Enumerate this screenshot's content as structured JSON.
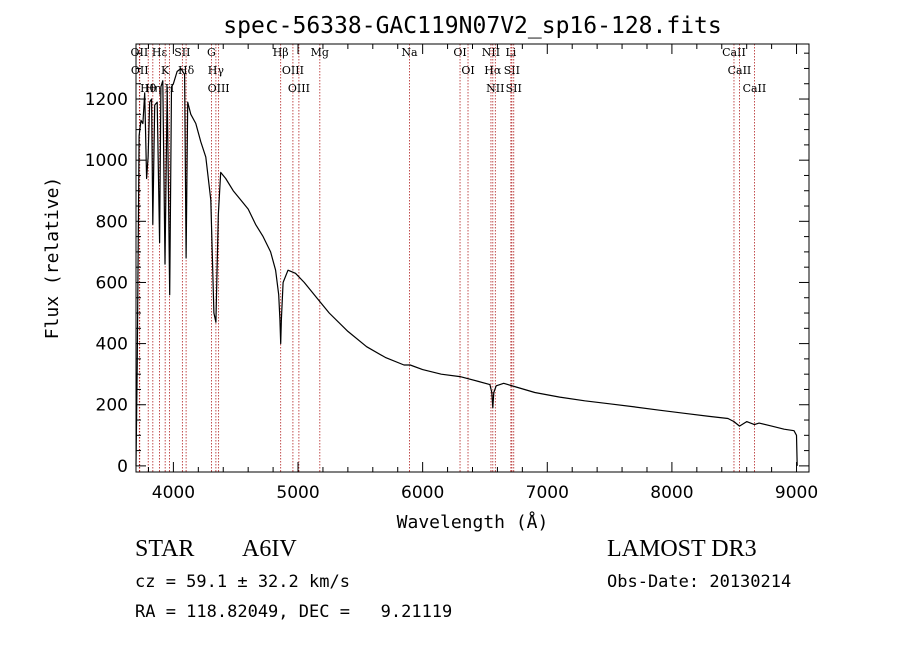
{
  "chart_data": {
    "type": "line",
    "title": "spec-56338-GAC119N07V2_sp16-128.fits",
    "xlabel": "Wavelength (Å)",
    "ylabel": "Flux (relative)",
    "xlim": [
      3700,
      9100
    ],
    "ylim": [
      -20,
      1380
    ],
    "xticks": [
      4000,
      5000,
      6000,
      7000,
      8000,
      9000
    ],
    "xtick_labels": [
      "4000",
      "5000",
      "6000",
      "7000",
      "8000",
      "9000"
    ],
    "yticks": [
      0,
      200,
      400,
      600,
      800,
      1000,
      1200
    ],
    "ytick_labels": [
      "0",
      "200",
      "400",
      "600",
      "800",
      "1000",
      "1200"
    ],
    "grid": false,
    "series": [
      {
        "name": "spectrum",
        "x": [
          3700,
          3710,
          3725,
          3740,
          3755,
          3770,
          3785,
          3797,
          3810,
          3825,
          3835,
          3850,
          3870,
          3889,
          3900,
          3915,
          3933,
          3950,
          3970,
          3985,
          4000,
          4030,
          4060,
          4090,
          4102,
          4115,
          4140,
          4180,
          4220,
          4260,
          4300,
          4325,
          4341,
          4360,
          4380,
          4420,
          4480,
          4540,
          4600,
          4660,
          4720,
          4780,
          4820,
          4845,
          4855,
          4861,
          4867,
          4880,
          4920,
          4980,
          5050,
          5150,
          5250,
          5400,
          5550,
          5700,
          5850,
          5900,
          6000,
          6150,
          6300,
          6450,
          6540,
          6555,
          6563,
          6571,
          6590,
          6650,
          6750,
          6900,
          7100,
          7300,
          7500,
          7700,
          7900,
          8100,
          8300,
          8450,
          8498,
          8542,
          8600,
          8662,
          8700,
          8800,
          8900,
          8980,
          9000,
          9005
        ],
        "y": [
          0,
          320,
          1080,
          1130,
          1120,
          1220,
          940,
          1010,
          1190,
          1200,
          790,
          1180,
          1190,
          730,
          1240,
          1260,
          660,
          1240,
          560,
          1240,
          1250,
          1290,
          1300,
          1280,
          680,
          1190,
          1150,
          1120,
          1060,
          1010,
          870,
          500,
          470,
          820,
          960,
          940,
          900,
          870,
          840,
          790,
          750,
          700,
          640,
          560,
          480,
          400,
          480,
          600,
          640,
          630,
          600,
          550,
          500,
          440,
          390,
          355,
          330,
          330,
          315,
          300,
          292,
          276,
          266,
          240,
          190,
          240,
          262,
          270,
          258,
          240,
          225,
          213,
          203,
          193,
          182,
          172,
          162,
          155,
          145,
          130,
          145,
          135,
          140,
          130,
          120,
          115,
          100,
          0
        ]
      }
    ],
    "line_markers": [
      {
        "label": "Hθ",
        "wavelength": 3798
      },
      {
        "label": "OII",
        "wavelength": 3727
      },
      {
        "label": "OII",
        "wavelength": 3730
      },
      {
        "label": "Hη",
        "wavelength": 3835
      },
      {
        "label": "K",
        "wavelength": 3934
      },
      {
        "label": "Hε",
        "wavelength": 3889
      },
      {
        "label": "H",
        "wavelength": 3969
      },
      {
        "label": "Hδ",
        "wavelength": 4102
      },
      {
        "label": "SII",
        "wavelength": 4072
      },
      {
        "label": "OIII",
        "wavelength": 4363
      },
      {
        "label": "Hγ",
        "wavelength": 4341
      },
      {
        "label": "G",
        "wavelength": 4305
      },
      {
        "label": "Hβ",
        "wavelength": 4861
      },
      {
        "label": "OIII",
        "wavelength": 5007
      },
      {
        "label": "OIII",
        "wavelength": 4959
      },
      {
        "label": "Mg",
        "wavelength": 5175
      },
      {
        "label": "Na",
        "wavelength": 5894
      },
      {
        "label": "OI",
        "wavelength": 6300
      },
      {
        "label": "OI",
        "wavelength": 6364
      },
      {
        "label": "Hα",
        "wavelength": 6563
      },
      {
        "label": "NII",
        "wavelength": 6548
      },
      {
        "label": "NII",
        "wavelength": 6583
      },
      {
        "label": "SII",
        "wavelength": 6716
      },
      {
        "label": "Li",
        "wavelength": 6708
      },
      {
        "label": "SII",
        "wavelength": 6731
      },
      {
        "label": "CaII",
        "wavelength": 8542
      },
      {
        "label": "CaII",
        "wavelength": 8498
      },
      {
        "label": "CaII",
        "wavelength": 8662
      }
    ]
  },
  "info": {
    "object_class": "STAR",
    "subclass": "A6IV",
    "cz": "cz = 59.1 ± 32.2 km/s",
    "radec": "RA = 118.82049, DEC =   9.21119",
    "survey": "LAMOST DR3",
    "obs_date": "Obs-Date: 20130214"
  },
  "colors": {
    "spectrum": "#000000",
    "marker_line": "#b22222",
    "axes": "#000000"
  }
}
